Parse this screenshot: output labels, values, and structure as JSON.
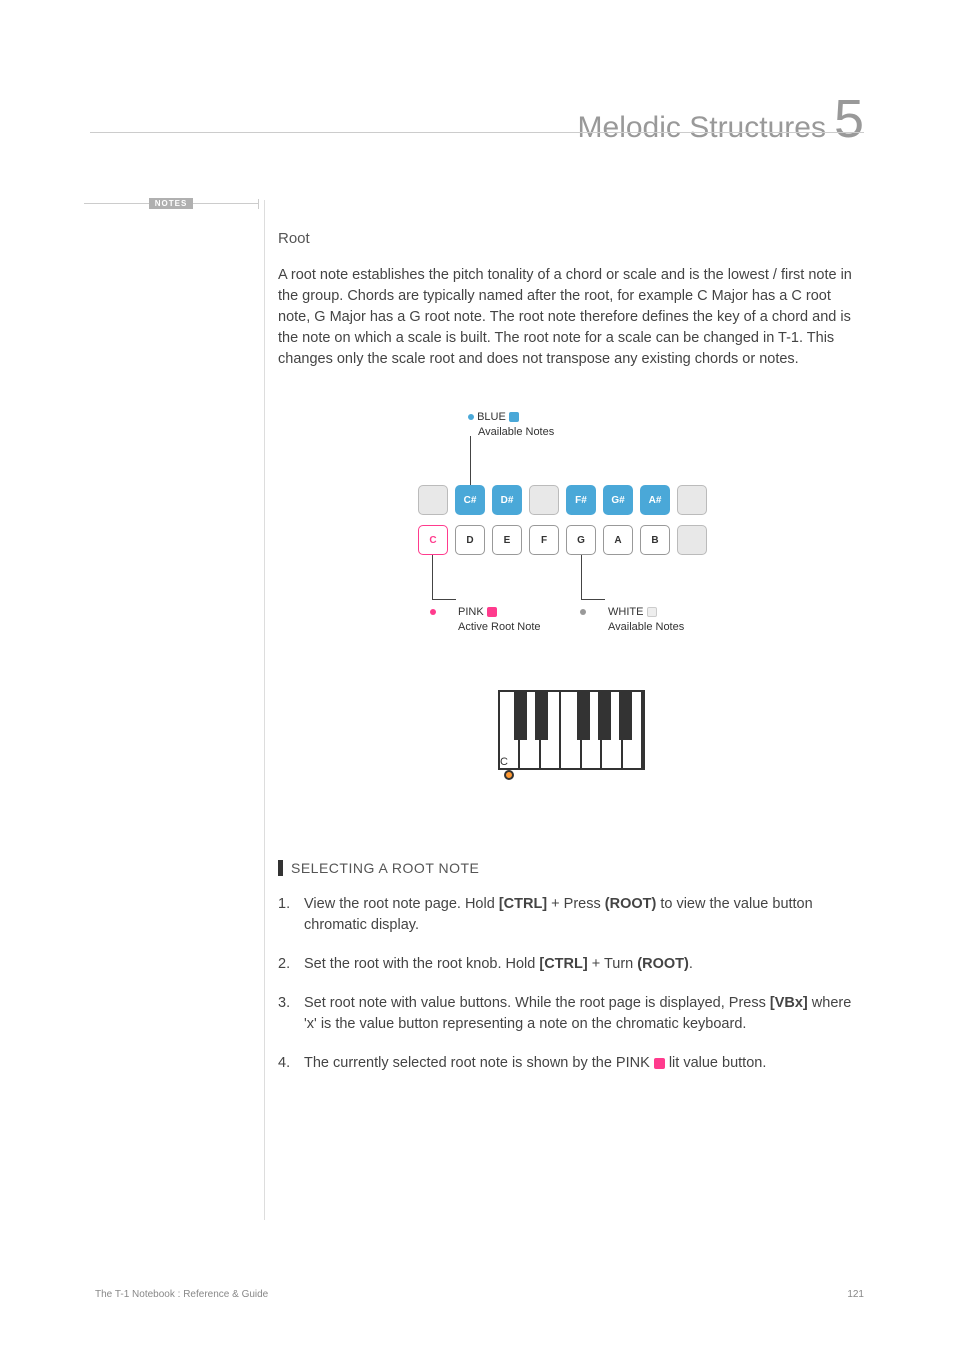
{
  "header": {
    "title": "Melodic Structures",
    "chapter_number": "5"
  },
  "notes_tab": "NOTES",
  "section": {
    "title": "Root",
    "body": "A root note establishes the pitch tonality of a chord or scale and is the lowest / first note in the group. Chords are typically named after the root, for example C Major has a C root note, G Major has a G root note. The root note therefore defines the key of a chord and is the note on which a scale is built. The root note for a scale can be changed in T-1. This changes only the scale root and does not transpose any existing chords or notes."
  },
  "diagram": {
    "legend_blue_title": "BLUE",
    "legend_blue_sub": "Available Notes",
    "legend_pink_title": "PINK",
    "legend_pink_sub": "Active Root Note",
    "legend_white_title": "WHITE",
    "legend_white_sub": "Available Notes",
    "colors": {
      "blue": "#4aa8d8",
      "pink": "#ff3b8d",
      "white_border": "#999999",
      "grey_fill": "#e8e8e8",
      "grey_border": "#bbbbbb",
      "white_swatch": "#eeeeee"
    },
    "top_row": [
      {
        "label": "",
        "style": "grey"
      },
      {
        "label": "C#",
        "style": "blue"
      },
      {
        "label": "D#",
        "style": "blue"
      },
      {
        "label": "",
        "style": "grey"
      },
      {
        "label": "F#",
        "style": "blue"
      },
      {
        "label": "G#",
        "style": "blue"
      },
      {
        "label": "A#",
        "style": "blue"
      },
      {
        "label": "",
        "style": "grey"
      }
    ],
    "bottom_row": [
      {
        "label": "C",
        "style": "pink"
      },
      {
        "label": "D",
        "style": "white"
      },
      {
        "label": "E",
        "style": "white"
      },
      {
        "label": "F",
        "style": "white"
      },
      {
        "label": "G",
        "style": "white"
      },
      {
        "label": "A",
        "style": "white"
      },
      {
        "label": "B",
        "style": "white"
      },
      {
        "label": "",
        "style": "grey"
      }
    ]
  },
  "piano": {
    "c_label": "C"
  },
  "subheading": "SELECTING A ROOT NOTE",
  "steps": {
    "s1_a": "View the root note page. Hold ",
    "s1_b": "[CTRL]",
    "s1_c": " + Press ",
    "s1_d": "(ROOT)",
    "s1_e": " to view the value button chromatic display.",
    "s2_a": "Set the root with the root knob. Hold ",
    "s2_b": "[CTRL]",
    "s2_c": " + Turn ",
    "s2_d": "(ROOT)",
    "s2_e": ".",
    "s3_a": "Set root note with value buttons. While the root page is displayed, Press ",
    "s3_b": "[VBx]",
    "s3_c": " where 'x' is the value button representing a note on the chromatic keyboard.",
    "s4_a": "The currently selected root note is shown by the PINK ",
    "s4_b": " lit value button."
  },
  "footer": {
    "left": "The T-1 Notebook : Reference & Guide",
    "page": "121"
  }
}
